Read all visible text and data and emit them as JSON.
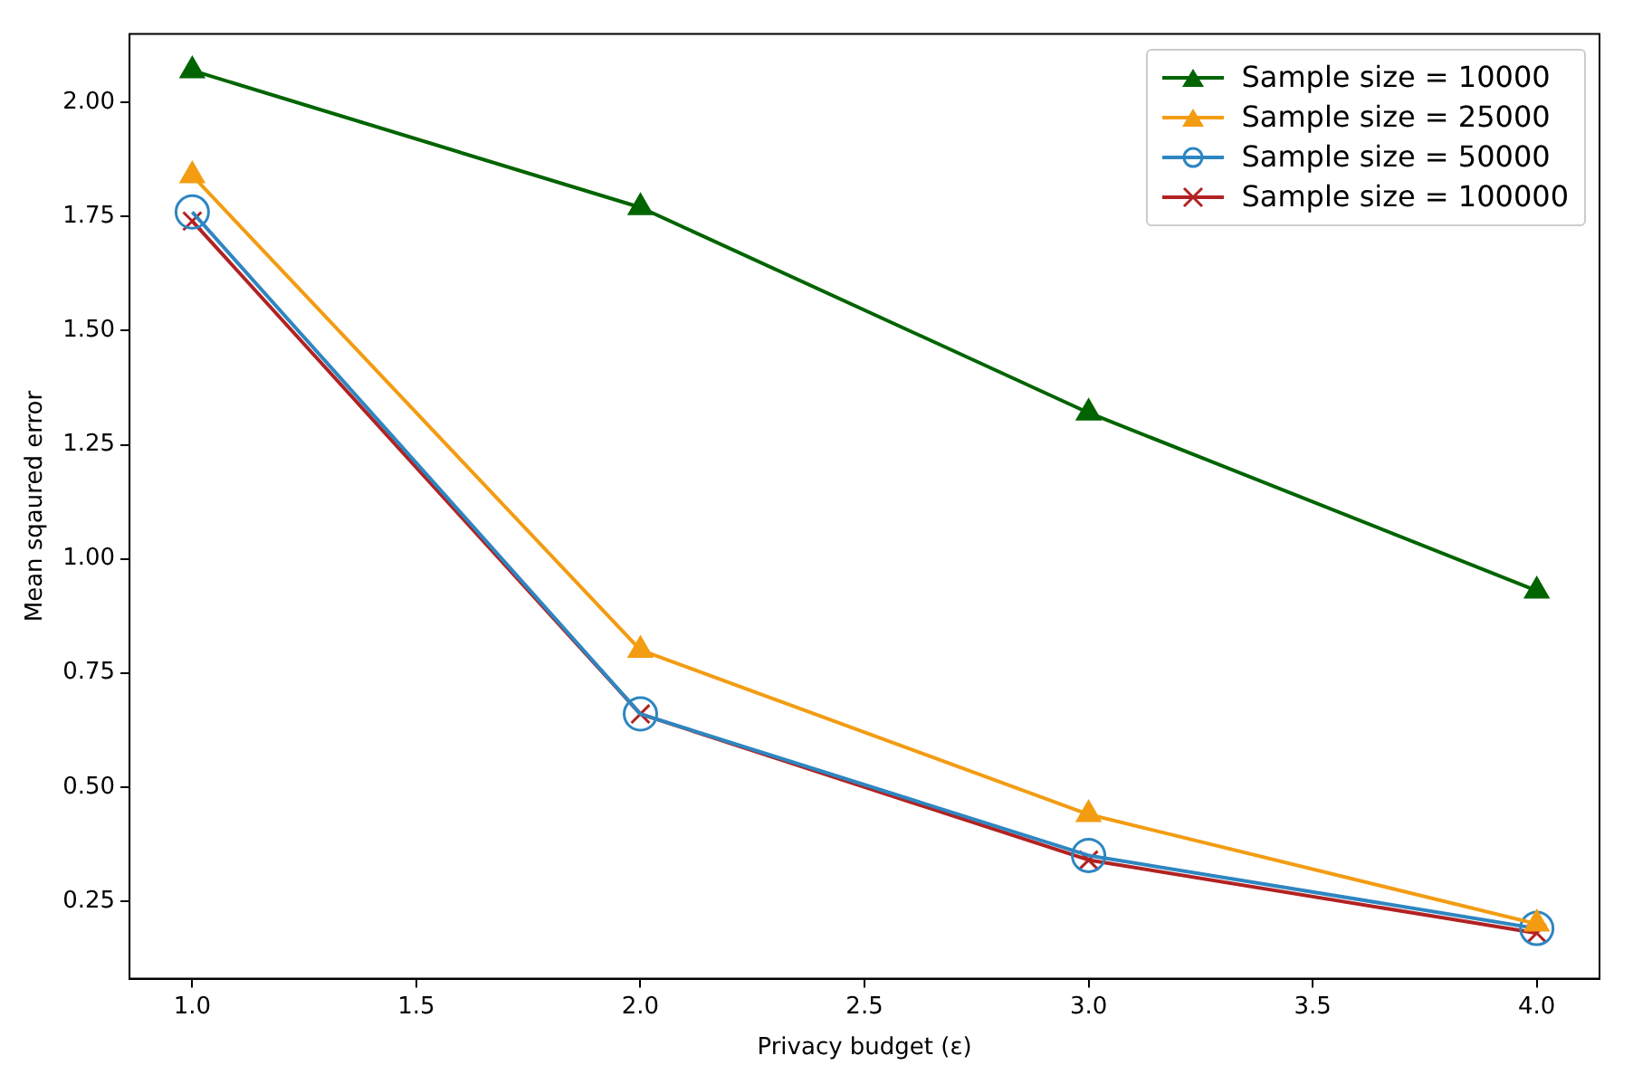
{
  "chart_data": {
    "type": "line",
    "xlabel": "Privacy budget (ε)",
    "ylabel": "Mean sqaured error",
    "x": [
      1,
      2,
      3,
      4
    ],
    "series": [
      {
        "name": "Sample size = 10000",
        "color": "#006400",
        "marker": "triangle",
        "values": [
          2.07,
          1.77,
          1.32,
          0.93
        ]
      },
      {
        "name": "Sample size = 25000",
        "color": "#f39c12",
        "marker": "triangle",
        "values": [
          1.84,
          0.8,
          0.44,
          0.2
        ]
      },
      {
        "name": "Sample size = 50000",
        "color": "#2e86c1",
        "marker": "circle",
        "values": [
          1.76,
          0.66,
          0.35,
          0.19
        ]
      },
      {
        "name": "Sample size = 100000",
        "color": "#b22222",
        "marker": "cross",
        "values": [
          1.74,
          0.66,
          0.34,
          0.18
        ]
      }
    ],
    "xlim": [
      0.86,
      4.14
    ],
    "xticks": [
      {
        "value": 1,
        "label": "1.0"
      },
      {
        "value": 1.5,
        "label": "1.5"
      },
      {
        "value": 2,
        "label": "2.0"
      },
      {
        "value": 2.5,
        "label": "2.5"
      },
      {
        "value": 3,
        "label": "3.0"
      },
      {
        "value": 3.5,
        "label": "3.5"
      },
      {
        "value": 4,
        "label": "4.0"
      }
    ],
    "ylim": [
      0.08,
      2.15
    ],
    "yticks": [
      {
        "value": 0.25,
        "label": "0.25"
      },
      {
        "value": 0.5,
        "label": "0.50"
      },
      {
        "value": 0.75,
        "label": "0.75"
      },
      {
        "value": 1,
        "label": "1.00"
      },
      {
        "value": 1.25,
        "label": "1.25"
      },
      {
        "value": 1.5,
        "label": "1.50"
      },
      {
        "value": 1.75,
        "label": "1.75"
      },
      {
        "value": 2,
        "label": "2.00"
      }
    ],
    "grid": false,
    "legend": "top right",
    "line_style": "solid"
  }
}
